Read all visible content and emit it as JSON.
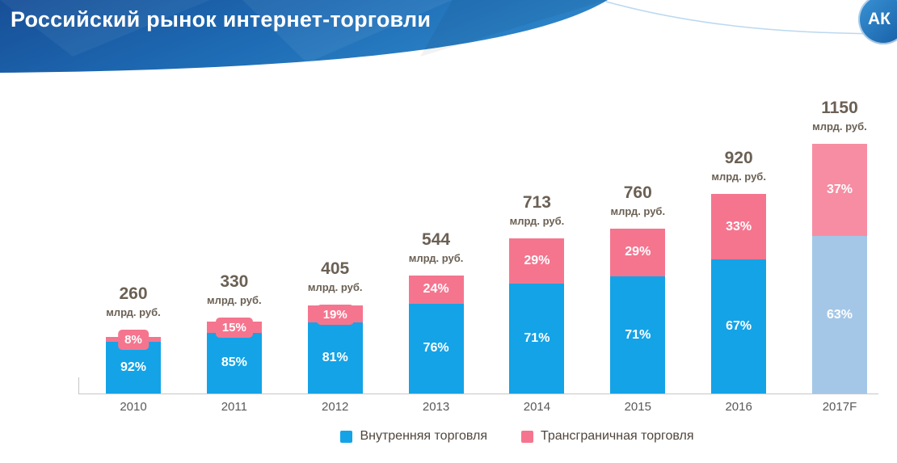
{
  "header": {
    "title": "Российский рынок интернет-торговли",
    "logo_text": "АК"
  },
  "chart_data": {
    "type": "bar",
    "stacked": true,
    "title": "Российский рынок интернет-торговли",
    "unit_label": "млрд. руб.",
    "categories": [
      "2010",
      "2011",
      "2012",
      "2013",
      "2014",
      "2015",
      "2016",
      "2017F"
    ],
    "totals": [
      260,
      330,
      405,
      544,
      713,
      760,
      920,
      1150
    ],
    "series": [
      {
        "name": "Внутренняя торговля",
        "color": "#14a3e6",
        "forecast_color": "#a4c7e7",
        "percents": [
          92,
          85,
          81,
          76,
          71,
          71,
          67,
          63
        ]
      },
      {
        "name": "Трансграничная торговля",
        "color": "#f5758f",
        "forecast_color": "#f78da2",
        "percents": [
          8,
          15,
          19,
          24,
          29,
          29,
          33,
          37
        ]
      }
    ],
    "forecast_category": "2017F",
    "forecast_index": 7,
    "ylim": [
      0,
      1200
    ],
    "grid": false,
    "legend_position": "bottom"
  },
  "colors": {
    "header_gradient_start": "#174f97",
    "header_gradient_end": "#2e86c9",
    "title_text": "#ffffff",
    "value_label_text": "#6b6054",
    "category_label_text": "#595959",
    "axis_line": "#c6c6c6"
  }
}
